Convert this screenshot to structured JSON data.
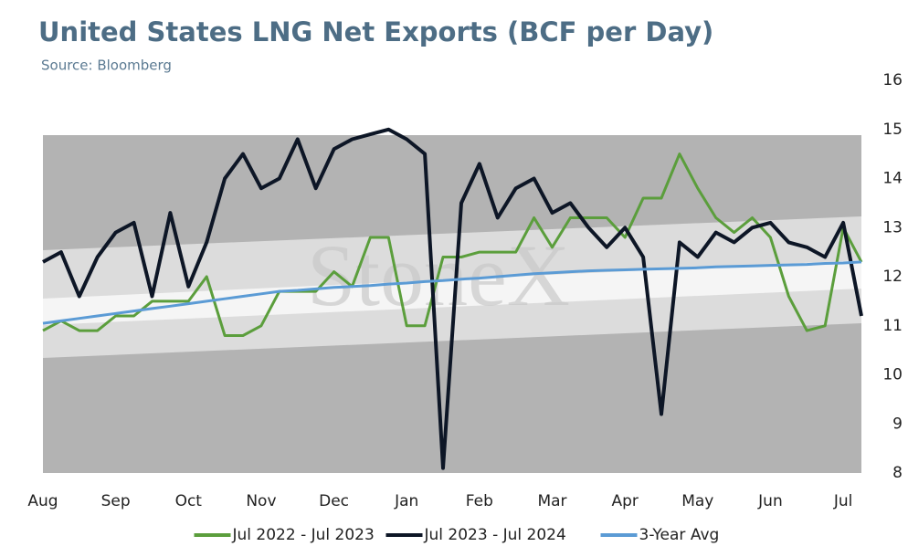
{
  "chart_data": {
    "type": "line",
    "title": "United States LNG Net Exports (BCF per Day)",
    "subtitle": "Source: Bloomberg",
    "watermark": "StoneX",
    "categories": [
      "Aug",
      null,
      null,
      null,
      "Sep",
      null,
      null,
      null,
      "Oct",
      null,
      null,
      null,
      "Nov",
      null,
      null,
      null,
      "Dec",
      null,
      null,
      null,
      "Jan",
      null,
      null,
      null,
      "Feb",
      null,
      null,
      null,
      "Mar",
      null,
      null,
      null,
      "Apr",
      null,
      null,
      null,
      "May",
      null,
      null,
      null,
      "Jun",
      null,
      null,
      null,
      "Jul",
      null
    ],
    "series": [
      {
        "name": "Jul 2022 - Jul 2023",
        "color": "#5b9e3c",
        "values": [
          10.9,
          11.1,
          10.9,
          10.9,
          11.2,
          11.2,
          11.5,
          11.5,
          11.5,
          12.0,
          10.8,
          10.8,
          11.0,
          11.7,
          11.7,
          11.7,
          12.1,
          11.8,
          12.8,
          12.8,
          11.0,
          11.0,
          12.4,
          12.4,
          12.5,
          12.5,
          12.5,
          13.2,
          12.6,
          13.2,
          13.2,
          13.2,
          12.8,
          13.6,
          13.6,
          14.5,
          13.8,
          13.2,
          12.9,
          13.2,
          12.8,
          11.6,
          10.9,
          11.0,
          13.0,
          12.3
        ]
      },
      {
        "name": "Jul 2023 - Jul 2024",
        "color": "#0d1626",
        "values": [
          12.3,
          12.5,
          11.6,
          12.4,
          12.9,
          13.1,
          11.6,
          13.3,
          11.8,
          12.7,
          14.0,
          14.5,
          13.8,
          14.0,
          14.8,
          13.8,
          14.6,
          14.8,
          14.9,
          15.0,
          14.8,
          14.5,
          8.1,
          13.5,
          14.3,
          13.2,
          13.8,
          14.0,
          13.3,
          13.5,
          13.0,
          12.6,
          13.0,
          12.4,
          9.2,
          12.7,
          12.4,
          12.9,
          12.7,
          13.0,
          13.1,
          12.7,
          12.6,
          12.4,
          13.1,
          11.2
        ]
      },
      {
        "name": "3-Year Avg",
        "color": "#5b9bd5",
        "values": [
          11.05,
          11.1,
          11.15,
          11.2,
          11.25,
          11.3,
          11.35,
          11.4,
          11.45,
          11.5,
          11.55,
          11.6,
          11.65,
          11.7,
          11.72,
          11.75,
          11.78,
          11.8,
          11.82,
          11.85,
          11.87,
          11.9,
          11.92,
          11.95,
          11.97,
          12.0,
          12.03,
          12.06,
          12.08,
          12.1,
          12.12,
          12.13,
          12.14,
          12.15,
          12.16,
          12.17,
          12.18,
          12.2,
          12.21,
          12.22,
          12.23,
          12.24,
          12.25,
          12.27,
          12.28,
          12.3
        ]
      }
    ],
    "ylim": [
      8,
      16
    ],
    "yticks": [
      8,
      9,
      10,
      11,
      12,
      13,
      14,
      15,
      16
    ],
    "legend": "bottom"
  }
}
